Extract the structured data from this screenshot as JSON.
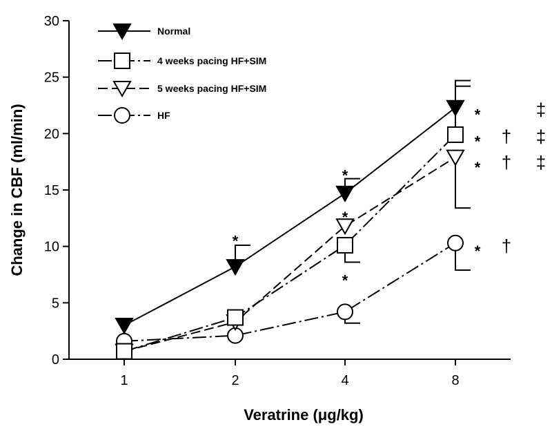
{
  "chart_data": {
    "type": "line",
    "xlabel": "Veratrine (μg/kg)",
    "ylabel": "Change in CBF (ml/min)",
    "categories": [
      "1",
      "2",
      "4",
      "8"
    ],
    "ylim": [
      0,
      30
    ],
    "yticks": [
      "0",
      "5",
      "10",
      "15",
      "20",
      "25",
      "30"
    ],
    "grid": false,
    "legend_position": "top-left",
    "series": [
      {
        "name": "Normal",
        "marker": "filled-triangle-down",
        "line_style": "solid",
        "values": [
          3.0,
          8.2,
          14.7,
          22.3
        ],
        "error_upper": [
          null,
          10.1,
          16.0,
          24.7
        ],
        "error_lower": [
          null,
          null,
          null,
          null
        ]
      },
      {
        "name": "4 weeks pacing HF+SIM",
        "marker": "open-square",
        "line_style": "dash-dot",
        "values": [
          0.7,
          3.7,
          10.1,
          19.9
        ],
        "error_upper": [
          null,
          null,
          null,
          24.2
        ],
        "error_lower": [
          null,
          null,
          8.6,
          null
        ]
      },
      {
        "name": "5 weeks pacing HF+SIM",
        "marker": "open-triangle-down",
        "line_style": "long-dash",
        "values": [
          0.7,
          3.3,
          11.8,
          17.9
        ],
        "error_upper": [
          null,
          null,
          null,
          null
        ],
        "error_lower": [
          null,
          null,
          null,
          13.4
        ]
      },
      {
        "name": "HF",
        "marker": "open-circle",
        "line_style": "dash-dot",
        "values": [
          1.6,
          2.1,
          4.2,
          10.3
        ],
        "error_upper": [
          null,
          null,
          null,
          null
        ],
        "error_lower": [
          null,
          null,
          3.2,
          7.9
        ]
      }
    ],
    "annotations": [
      {
        "text": "*",
        "category": "2",
        "y": 11.0
      },
      {
        "text": "*",
        "category": "4",
        "y": 16.8
      },
      {
        "text": "*",
        "category": "4",
        "y": 13.1
      },
      {
        "text": "*",
        "category": "4",
        "y": 7.5
      },
      {
        "text": "*",
        "row": 0,
        "y": 22.2
      },
      {
        "text": "‡",
        "row": 0,
        "y": 22.2
      },
      {
        "text": "*",
        "row": 1,
        "y": 19.8
      },
      {
        "text": "†",
        "row": 1,
        "y": 19.8
      },
      {
        "text": "‡",
        "row": 1,
        "y": 19.8
      },
      {
        "text": "*",
        "row": 2,
        "y": 17.5
      },
      {
        "text": "†",
        "row": 2,
        "y": 17.5
      },
      {
        "text": "‡",
        "row": 2,
        "y": 17.5
      },
      {
        "text": "*",
        "row": 3,
        "y": 10.1
      },
      {
        "text": "†",
        "row": 3,
        "y": 10.1
      }
    ]
  }
}
